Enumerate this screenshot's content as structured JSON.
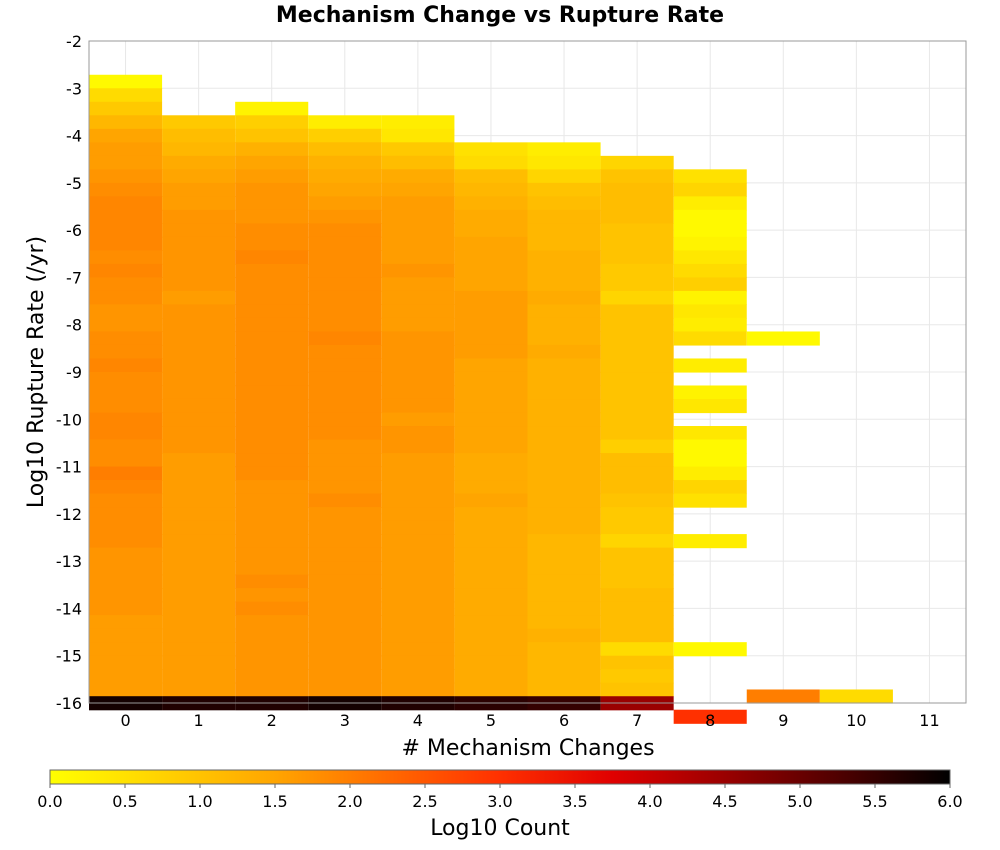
{
  "chart_data": {
    "type": "heatmap",
    "title": "Mechanism Change vs Rupture Rate",
    "xlabel": "# Mechanism Changes",
    "ylabel": "Log10 Rupture Rate (/yr)",
    "xlim": [
      -0.5,
      11.5
    ],
    "ylim": [
      -16,
      -2
    ],
    "x_ticks": [
      "0",
      "1",
      "2",
      "3",
      "4",
      "5",
      "6",
      "7",
      "8",
      "9",
      "10",
      "11"
    ],
    "y_ticks": [
      "-2",
      "-3",
      "-4",
      "-5",
      "-6",
      "-7",
      "-8",
      "-9",
      "-10",
      "-11",
      "-12",
      "-13",
      "-14",
      "-15",
      "-16"
    ],
    "grid": true,
    "bin_height": 0.2857,
    "colorbar": {
      "label": "Log10 Count",
      "range": [
        0.0,
        6.0
      ],
      "ticks": [
        "0.0",
        "0.5",
        "1.0",
        "1.5",
        "2.0",
        "2.5",
        "3.0",
        "3.5",
        "4.0",
        "4.5",
        "5.0",
        "5.5",
        "6.0"
      ],
      "stops": [
        "#ffff00",
        "#ffd200",
        "#ffa500",
        "#ff6a00",
        "#ff3000",
        "#e00000",
        "#9a0000",
        "#500000",
        "#000000"
      ]
    },
    "columns": [
      {
        "x": 0,
        "top": -2.714,
        "cells": [
          0.1,
          0.6,
          0.9,
          1.2,
          1.5,
          1.6,
          1.6,
          1.7,
          1.8,
          1.9,
          1.9,
          1.9,
          1.9,
          1.8,
          1.9,
          1.8,
          1.8,
          1.7,
          1.7,
          1.8,
          1.8,
          1.9,
          1.8,
          1.8,
          1.8,
          1.9,
          1.9,
          1.8,
          1.8,
          2.0,
          1.9,
          1.8,
          1.8,
          1.8,
          1.8,
          1.7,
          1.7,
          1.7,
          1.7,
          1.7,
          1.6,
          1.6,
          1.6,
          1.6,
          1.6,
          1.6,
          5.8
        ]
      },
      {
        "x": 1,
        "top": -3.571,
        "cells": [
          0.9,
          1.1,
          1.2,
          1.4,
          1.5,
          1.6,
          1.6,
          1.7,
          1.7,
          1.7,
          1.7,
          1.7,
          1.7,
          1.6,
          1.7,
          1.7,
          1.7,
          1.7,
          1.7,
          1.7,
          1.7,
          1.7,
          1.7,
          1.7,
          1.7,
          1.6,
          1.6,
          1.6,
          1.6,
          1.6,
          1.6,
          1.6,
          1.6,
          1.6,
          1.6,
          1.6,
          1.6,
          1.6,
          1.6,
          1.6,
          1.6,
          1.6,
          1.6,
          5.7
        ]
      },
      {
        "x": 2,
        "top": -3.286,
        "cells": [
          0.2,
          0.8,
          1.0,
          1.3,
          1.5,
          1.6,
          1.7,
          1.7,
          1.7,
          1.8,
          1.8,
          1.9,
          1.8,
          1.8,
          1.8,
          1.8,
          1.8,
          1.8,
          1.8,
          1.8,
          1.8,
          1.8,
          1.8,
          1.8,
          1.8,
          1.8,
          1.8,
          1.8,
          1.7,
          1.7,
          1.7,
          1.7,
          1.7,
          1.7,
          1.7,
          1.8,
          1.7,
          1.8,
          1.7,
          1.7,
          1.7,
          1.7,
          1.7,
          1.7,
          5.7
        ]
      },
      {
        "x": 3,
        "top": -3.571,
        "cells": [
          0.3,
          0.8,
          1.1,
          1.3,
          1.4,
          1.5,
          1.6,
          1.7,
          1.8,
          1.8,
          1.8,
          1.8,
          1.8,
          1.8,
          1.8,
          1.8,
          1.9,
          1.8,
          1.8,
          1.8,
          1.8,
          1.8,
          1.8,
          1.8,
          1.7,
          1.7,
          1.7,
          1.7,
          1.8,
          1.7,
          1.7,
          1.7,
          1.7,
          1.7,
          1.7,
          1.7,
          1.7,
          1.7,
          1.7,
          1.7,
          1.7,
          1.7,
          1.7,
          5.8
        ]
      },
      {
        "x": 4,
        "top": -3.571,
        "cells": [
          0.3,
          0.4,
          0.9,
          1.1,
          1.4,
          1.5,
          1.6,
          1.6,
          1.6,
          1.6,
          1.6,
          1.7,
          1.6,
          1.6,
          1.6,
          1.6,
          1.7,
          1.7,
          1.7,
          1.7,
          1.7,
          1.7,
          1.6,
          1.7,
          1.7,
          1.6,
          1.6,
          1.6,
          1.6,
          1.6,
          1.6,
          1.6,
          1.6,
          1.6,
          1.6,
          1.6,
          1.6,
          1.6,
          1.6,
          1.6,
          1.6,
          1.6,
          1.6,
          5.7
        ]
      },
      {
        "x": 5,
        "top": -4.143,
        "cells": [
          0.5,
          0.6,
          1.1,
          1.2,
          1.3,
          1.4,
          1.4,
          1.5,
          1.5,
          1.5,
          1.5,
          1.6,
          1.6,
          1.6,
          1.6,
          1.6,
          1.5,
          1.5,
          1.5,
          1.5,
          1.5,
          1.5,
          1.5,
          1.4,
          1.4,
          1.4,
          1.5,
          1.4,
          1.4,
          1.4,
          1.4,
          1.4,
          1.4,
          1.4,
          1.4,
          1.4,
          1.4,
          1.4,
          1.4,
          1.4,
          1.4,
          5.6
        ]
      },
      {
        "x": 6,
        "top": -4.143,
        "cells": [
          0.3,
          0.4,
          0.7,
          1.0,
          1.1,
          1.2,
          1.2,
          1.2,
          1.3,
          1.3,
          1.3,
          1.4,
          1.3,
          1.3,
          1.3,
          1.4,
          1.3,
          1.3,
          1.3,
          1.3,
          1.3,
          1.3,
          1.3,
          1.3,
          1.3,
          1.3,
          1.3,
          1.3,
          1.3,
          1.2,
          1.2,
          1.2,
          1.2,
          1.2,
          1.2,
          1.2,
          1.3,
          1.2,
          1.2,
          1.2,
          1.2,
          5.5
        ]
      },
      {
        "x": 7,
        "top": -4.429,
        "cells": [
          0.7,
          1.0,
          1.1,
          1.1,
          1.1,
          1.0,
          1.0,
          1.0,
          0.9,
          0.9,
          0.7,
          1.0,
          1.0,
          1.0,
          1.0,
          1.0,
          1.0,
          1.0,
          1.0,
          1.0,
          1.0,
          0.8,
          1.1,
          1.1,
          1.1,
          1.0,
          0.9,
          0.9,
          0.7,
          1.0,
          1.0,
          1.0,
          1.1,
          1.1,
          1.1,
          1.1,
          0.6,
          1.0,
          0.9,
          1.0,
          4.5
        ]
      },
      {
        "x": 8,
        "top": -4.714,
        "cells": [
          0.5,
          0.7,
          0.3,
          0.1,
          0.1,
          0.2,
          0.4,
          0.6,
          0.8,
          0.2,
          0.4,
          0.3,
          0.6,
          null,
          0.3,
          null,
          0.2,
          0.4,
          null,
          0.4,
          0.1,
          0.1,
          0.3,
          0.7,
          0.5,
          null,
          null,
          0.3,
          null,
          null,
          null,
          null,
          null,
          null,
          null,
          0.1,
          null,
          null,
          null,
          null,
          3.0
        ]
      },
      {
        "x": 9,
        "top": -8.143,
        "cells": [
          0.1
        ]
      },
      {
        "x": 9,
        "top": -15.714,
        "cells": [
          2.0
        ]
      },
      {
        "x": 10,
        "top": -15.714,
        "cells": [
          0.6
        ]
      }
    ]
  }
}
